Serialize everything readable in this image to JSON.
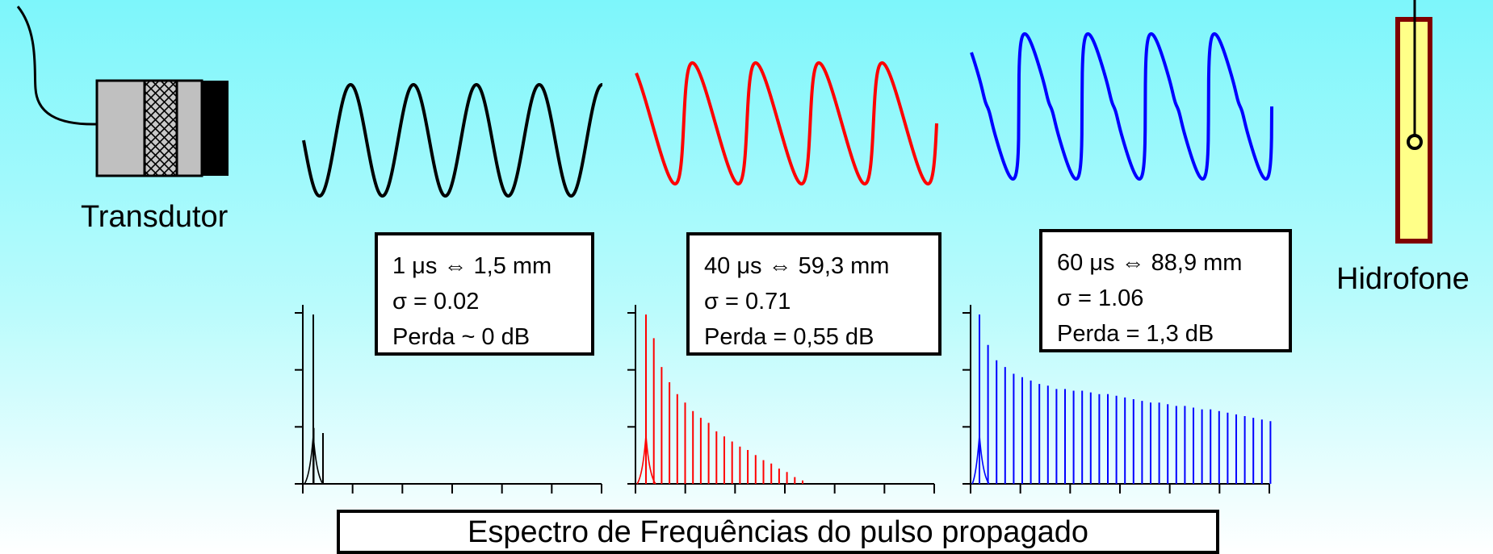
{
  "labels": {
    "transducer": "Transdutor",
    "hydrophone": "Hidrofone",
    "caption": "Espectro de Frequências do pulso propagado"
  },
  "panels": [
    {
      "color": "#000000",
      "line1": "1 μs ⇔ 1,5 mm",
      "line2": "σ = 0.02",
      "line3": "Perda ~ 0 dB",
      "sigma": 0.02,
      "spectrum_peaks": [
        1.0,
        0.33,
        0.3
      ]
    },
    {
      "color": "#ff0000",
      "line1": "40 μs ⇔ 59,3 mm",
      "line2": "σ = 0.71",
      "line3": "Perda = 0,55 dB",
      "sigma": 0.71,
      "spectrum_peaks": [
        1.0,
        0.86,
        0.69,
        0.6,
        0.53,
        0.48,
        0.43,
        0.39,
        0.36,
        0.31,
        0.28,
        0.25,
        0.22,
        0.2,
        0.17,
        0.14,
        0.12,
        0.09,
        0.07,
        0.04,
        0.02
      ]
    },
    {
      "color": "#0000ff",
      "line1": "60 μs ⇔ 88,9 mm",
      "line2": "σ = 1.06",
      "line3": "Perda = 1,3 dB",
      "sigma": 1.06,
      "spectrum_peaks": [
        1.0,
        0.82,
        0.73,
        0.69,
        0.65,
        0.63,
        0.61,
        0.59,
        0.58,
        0.56,
        0.56,
        0.55,
        0.55,
        0.54,
        0.53,
        0.53,
        0.52,
        0.51,
        0.5,
        0.49,
        0.48,
        0.48,
        0.47,
        0.46,
        0.46,
        0.45,
        0.44,
        0.44,
        0.43,
        0.42,
        0.41,
        0.4,
        0.39,
        0.38,
        0.37
      ]
    }
  ]
}
